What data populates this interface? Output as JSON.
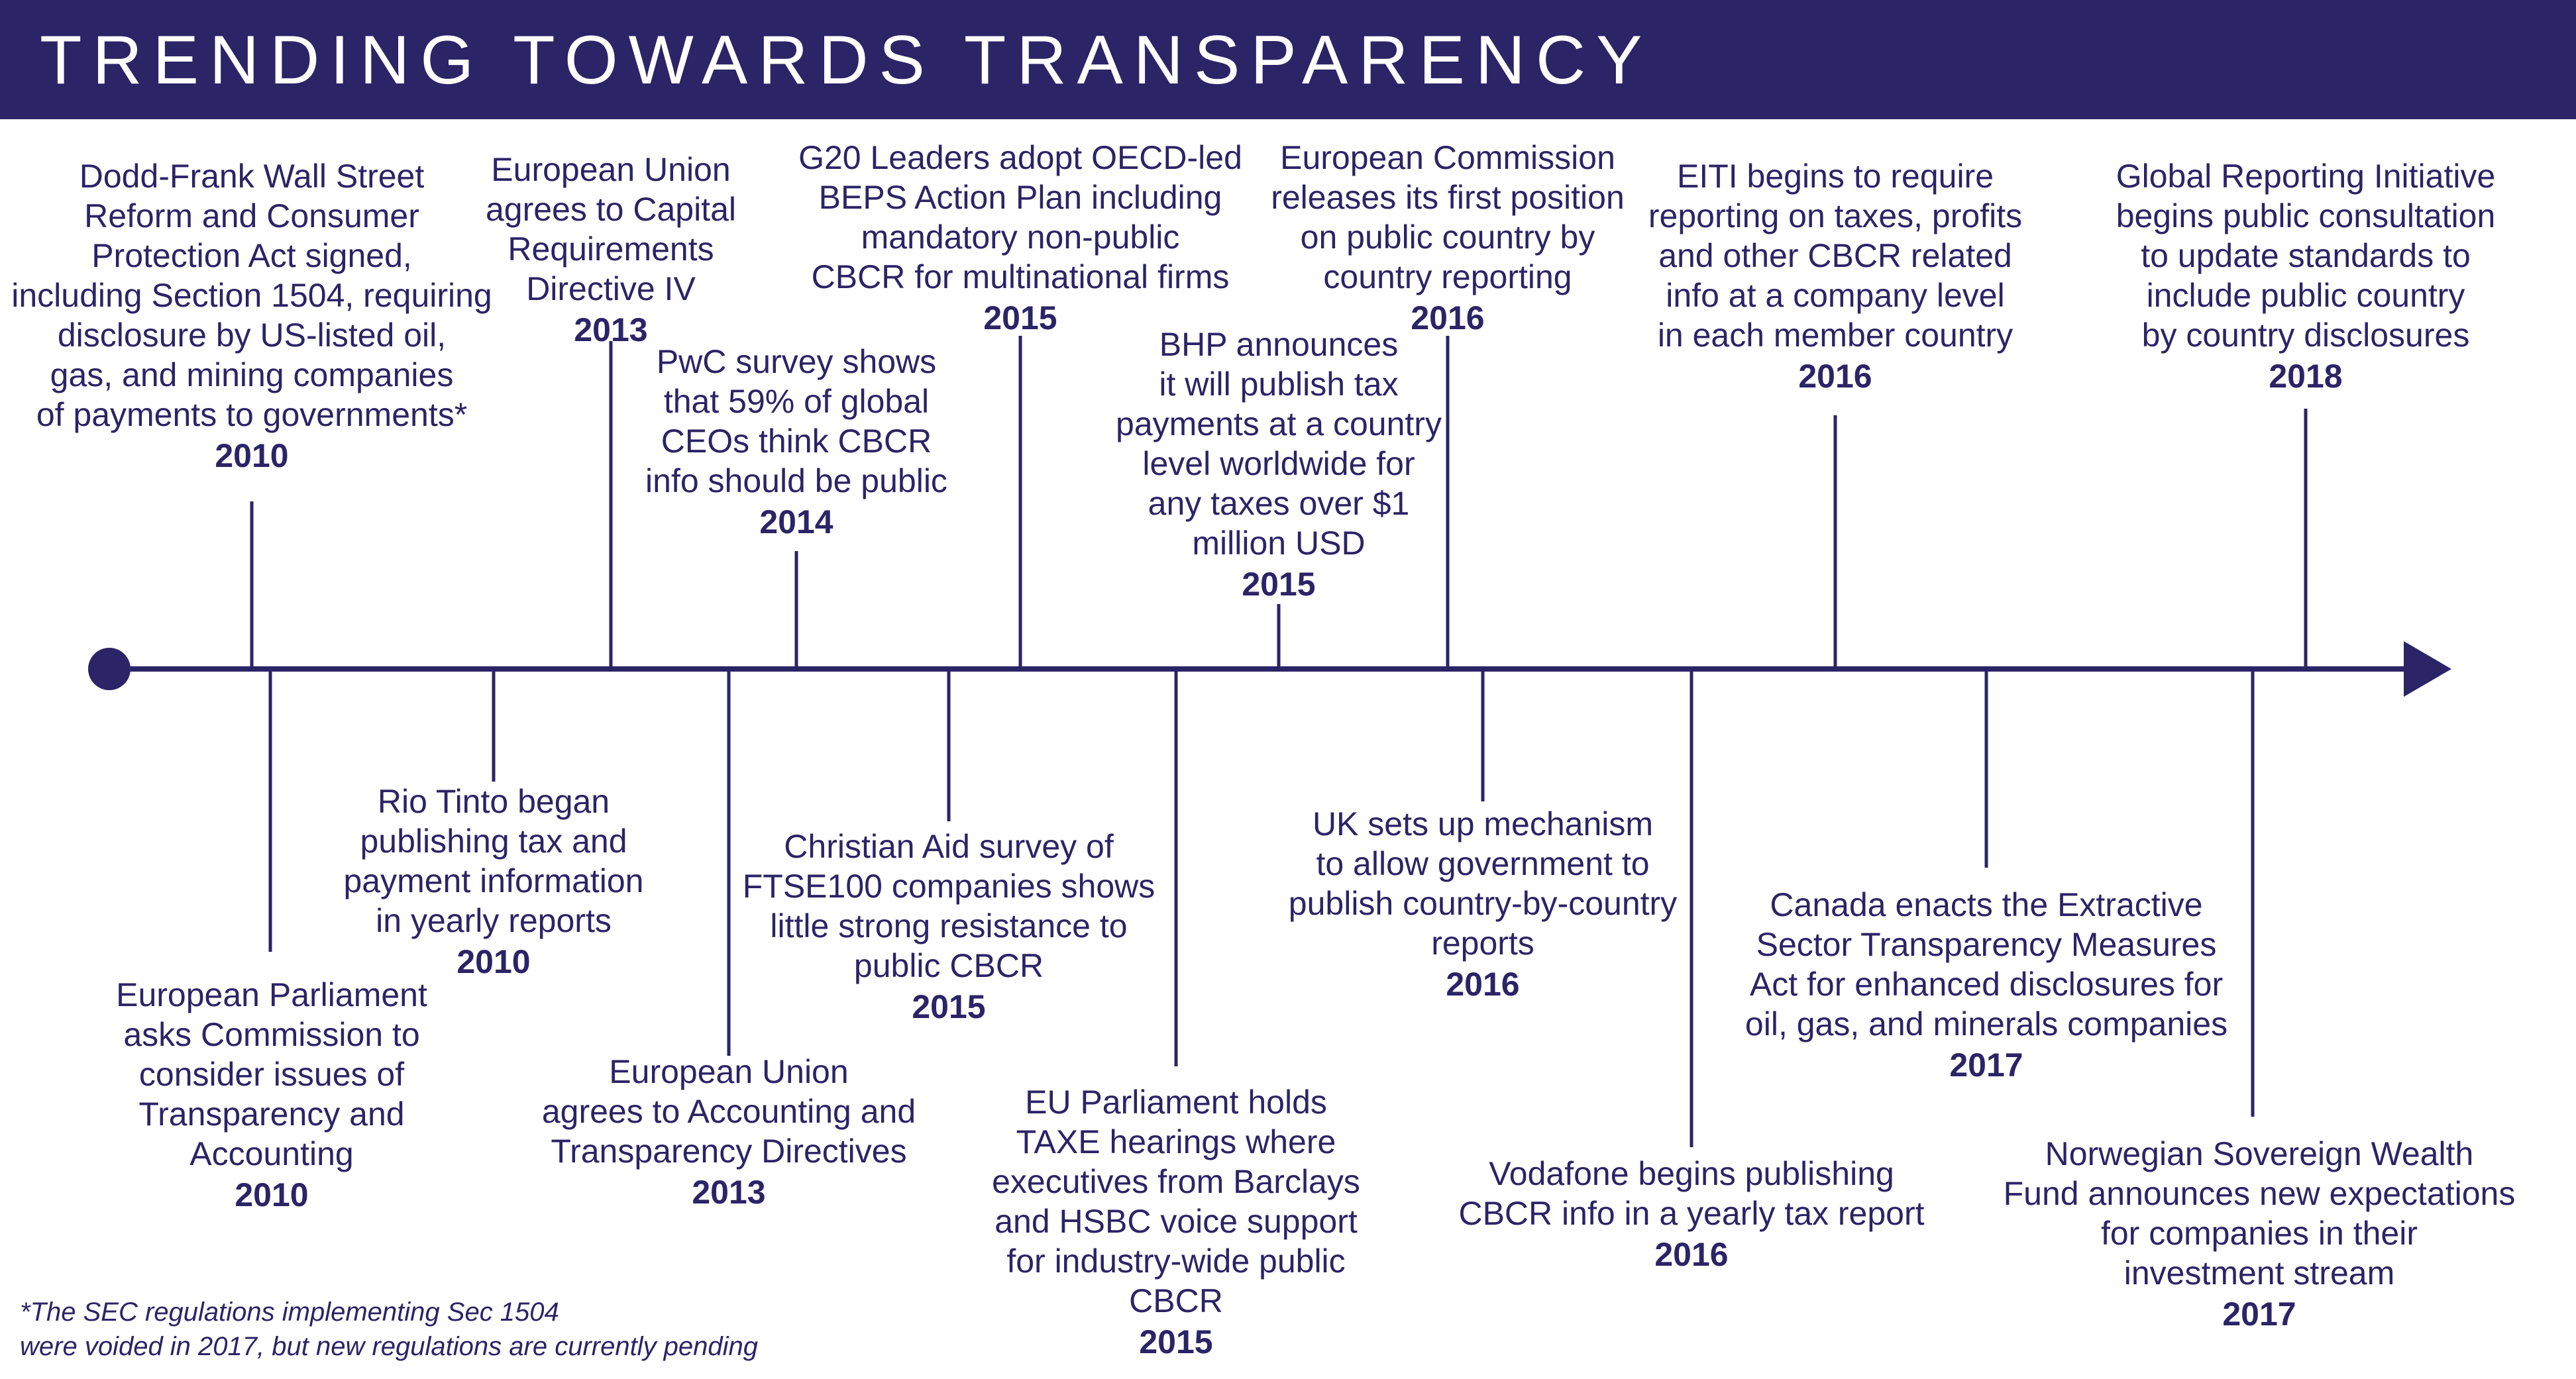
{
  "title": "TRENDING TOWARDS TRANSPARENCY",
  "colors": {
    "primary": "#2b2466",
    "background": "#ffffff"
  },
  "events_above": [
    {
      "text": "Dodd-Frank Wall Street\nReform and Consumer\nProtection Act signed,\nincluding Section 1504, requiring\ndisclosure by US-listed oil,\ngas, and mining companies\nof payments to governments*",
      "year": "2010"
    },
    {
      "text": "European Union\nagrees to Capital\nRequirements\nDirective IV",
      "year": "2013"
    },
    {
      "text": "PwC survey shows\nthat 59% of global\nCEOs think CBCR\ninfo should be public",
      "year": "2014"
    },
    {
      "text": "G20 Leaders adopt OECD-led\nBEPS Action Plan including\nmandatory non-public\nCBCR for multinational firms",
      "year": "2015"
    },
    {
      "text": "BHP announces\nit will publish tax\npayments at a country\nlevel worldwide for\nany taxes over $1\nmillion USD",
      "year": "2015"
    },
    {
      "text": "European Commission\nreleases its first position\non public country by\ncountry reporting",
      "year": "2016"
    },
    {
      "text": "EITI begins to require\nreporting on taxes, profits\nand other CBCR related\ninfo at a company level\nin each member country",
      "year": "2016"
    },
    {
      "text": "Global Reporting Initiative\nbegins public consultation\nto update standards to\ninclude public country\nby country disclosures",
      "year": "2018"
    }
  ],
  "events_below": [
    {
      "text": "European Parliament\nasks Commission to\nconsider issues of\nTransparency and\nAccounting",
      "year": "2010"
    },
    {
      "text": "Rio Tinto began\npublishing tax and\npayment information\nin yearly reports",
      "year": "2010"
    },
    {
      "text": "European Union\nagrees to Accounting and\nTransparency Directives",
      "year": "2013"
    },
    {
      "text": "Christian Aid survey of\nFTSE100 companies shows\nlittle strong resistance to\npublic CBCR",
      "year": "2015"
    },
    {
      "text": "EU Parliament holds\nTAXE hearings where\nexecutives from Barclays\nand HSBC voice support\nfor industry-wide public\nCBCR",
      "year": "2015"
    },
    {
      "text": "UK sets up mechanism\nto allow government to\npublish country-by-country\nreports",
      "year": "2016"
    },
    {
      "text": "Vodafone begins publishing\nCBCR info in a yearly tax report",
      "year": "2016"
    },
    {
      "text": "Canada enacts the Extractive\nSector Transparency Measures\nAct for enhanced disclosures for\noil, gas, and minerals companies",
      "year": "2017"
    },
    {
      "text": "Norwegian Sovereign Wealth\nFund announces new expectations\nfor companies in their\ninvestment stream",
      "year": "2017"
    }
  ],
  "footnote": "*The SEC regulations implementing Sec 1504\nwere voided in 2017, but new regulations are currently pending"
}
